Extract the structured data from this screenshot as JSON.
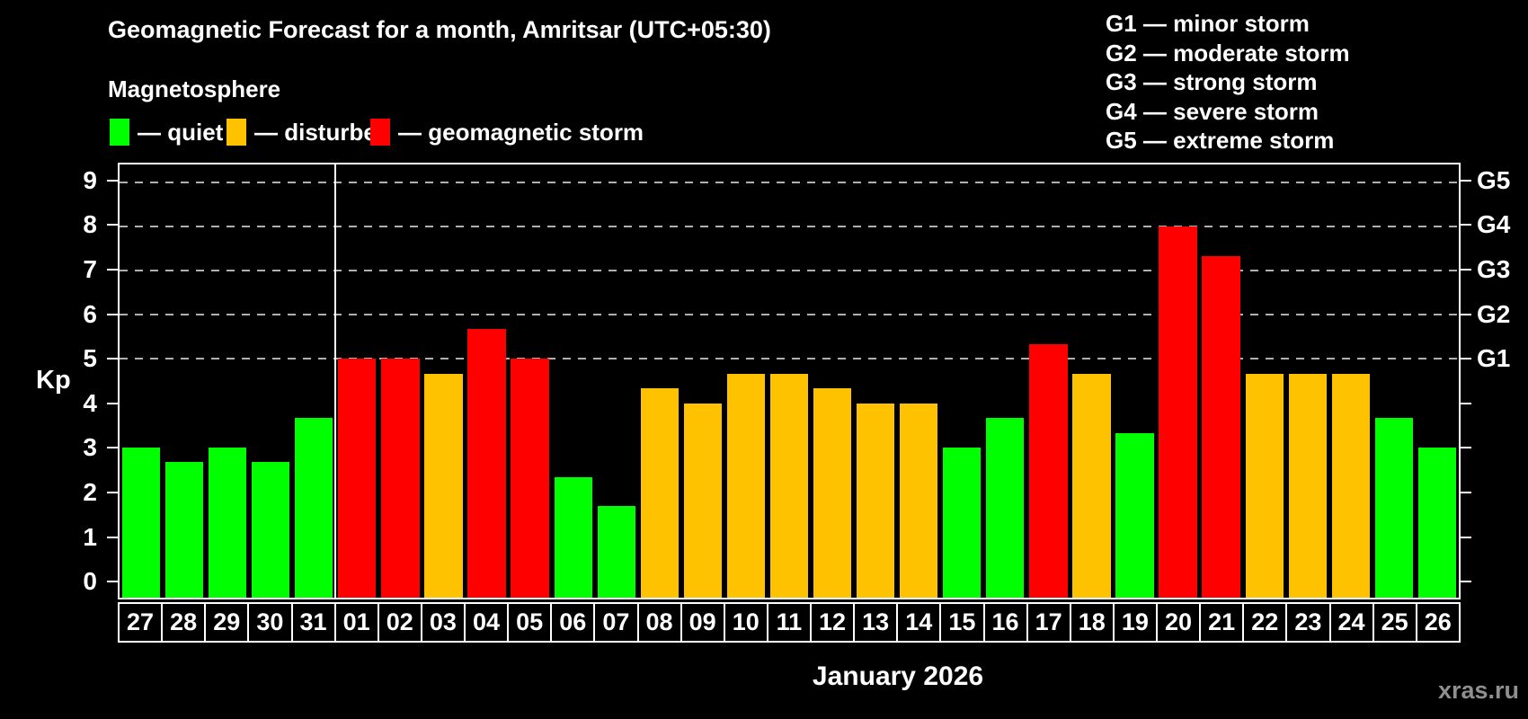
{
  "title": "Geomagnetic Forecast for a month, Amritsar (UTC+05:30)",
  "subtitle": "Magnetosphere",
  "legend": [
    {
      "state": "quiet",
      "label": "— quiet",
      "color": "#00ff00"
    },
    {
      "state": "disturbed",
      "label": "— disturbed",
      "color": "#ffc200"
    },
    {
      "state": "storm",
      "label": "— geomagnetic storm",
      "color": "#ff0000"
    }
  ],
  "g_legend": [
    "G1 — minor storm",
    "G2 — moderate storm",
    "G3 — strong storm",
    "G4 — severe storm",
    "G5 — extreme storm"
  ],
  "watermark": "xras.ru",
  "chart_data": {
    "type": "bar",
    "title": "Geomagnetic Forecast for a month, Amritsar (UTC+05:30)",
    "xlabel": "January 2026",
    "ylabel": "Kp",
    "categories": [
      "27",
      "28",
      "29",
      "30",
      "31",
      "01",
      "02",
      "03",
      "04",
      "05",
      "06",
      "07",
      "08",
      "09",
      "10",
      "11",
      "12",
      "13",
      "14",
      "15",
      "16",
      "17",
      "18",
      "19",
      "20",
      "21",
      "22",
      "23",
      "24",
      "25",
      "26"
    ],
    "values": [
      3,
      2.67,
      3,
      2.67,
      3.67,
      5,
      5,
      4.67,
      5.67,
      5,
      2.33,
      1.67,
      4.33,
      4,
      4.67,
      4.67,
      4.33,
      4,
      4,
      3,
      3.67,
      5.33,
      4.67,
      3.33,
      8,
      7.33,
      4.67,
      4.67,
      4.67,
      3.67,
      3
    ],
    "states": [
      "quiet",
      "quiet",
      "quiet",
      "quiet",
      "quiet",
      "storm",
      "storm",
      "disturbed",
      "storm",
      "storm",
      "quiet",
      "quiet",
      "disturbed",
      "disturbed",
      "disturbed",
      "disturbed",
      "disturbed",
      "disturbed",
      "disturbed",
      "quiet",
      "quiet",
      "storm",
      "disturbed",
      "quiet",
      "storm",
      "storm",
      "disturbed",
      "disturbed",
      "disturbed",
      "quiet",
      "quiet"
    ],
    "state_colors": {
      "quiet": "#00ff00",
      "disturbed": "#ffc200",
      "storm": "#ff0000"
    },
    "yticks": [
      0,
      1,
      2,
      3,
      4,
      5,
      6,
      7,
      8,
      9
    ],
    "ylim": [
      -0.4,
      9.4
    ],
    "grid_kp": [
      5,
      6,
      7,
      8,
      9
    ],
    "g_axis": [
      {
        "label": "G1",
        "kp": 5
      },
      {
        "label": "G2",
        "kp": 6
      },
      {
        "label": "G3",
        "kp": 7
      },
      {
        "label": "G4",
        "kp": 8
      },
      {
        "label": "G5",
        "kp": 9
      }
    ],
    "month_boundary_index": 5,
    "legend_position": "top-left",
    "grid": "dashed horizontal lines at G storm levels only"
  }
}
